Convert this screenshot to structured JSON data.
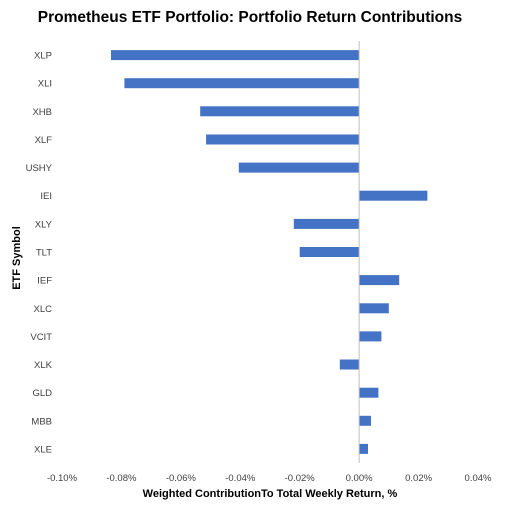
{
  "chart_data": {
    "type": "bar",
    "orientation": "horizontal",
    "title": "Prometheus ETF Portfolio: Portfolio Return Contributions",
    "xlabel": "Weighted ContributionTo Total Weekly Return, %",
    "ylabel": "ETF Symbol",
    "xlim": [
      -0.1,
      0.04
    ],
    "xticks": [
      -0.1,
      -0.08,
      -0.06,
      -0.04,
      -0.02,
      0.0,
      0.02,
      0.04
    ],
    "xtick_labels": [
      "-0.10%",
      "-0.08%",
      "-0.06%",
      "-0.04%",
      "-0.02%",
      "0.00%",
      "0.02%",
      "0.04%"
    ],
    "grid": false,
    "legend": "none",
    "bar_color": "#4472C4",
    "categories": [
      "XLP",
      "XLI",
      "XHB",
      "XLF",
      "USHY",
      "IEI",
      "XLY",
      "TLT",
      "IEF",
      "XLC",
      "VCIT",
      "XLK",
      "GLD",
      "MBB",
      "XLE"
    ],
    "values": [
      -0.0835,
      -0.079,
      -0.0535,
      -0.0515,
      -0.0405,
      0.023,
      -0.022,
      -0.02,
      0.0135,
      0.01,
      0.0075,
      -0.0065,
      0.0065,
      0.004,
      0.003
    ]
  }
}
